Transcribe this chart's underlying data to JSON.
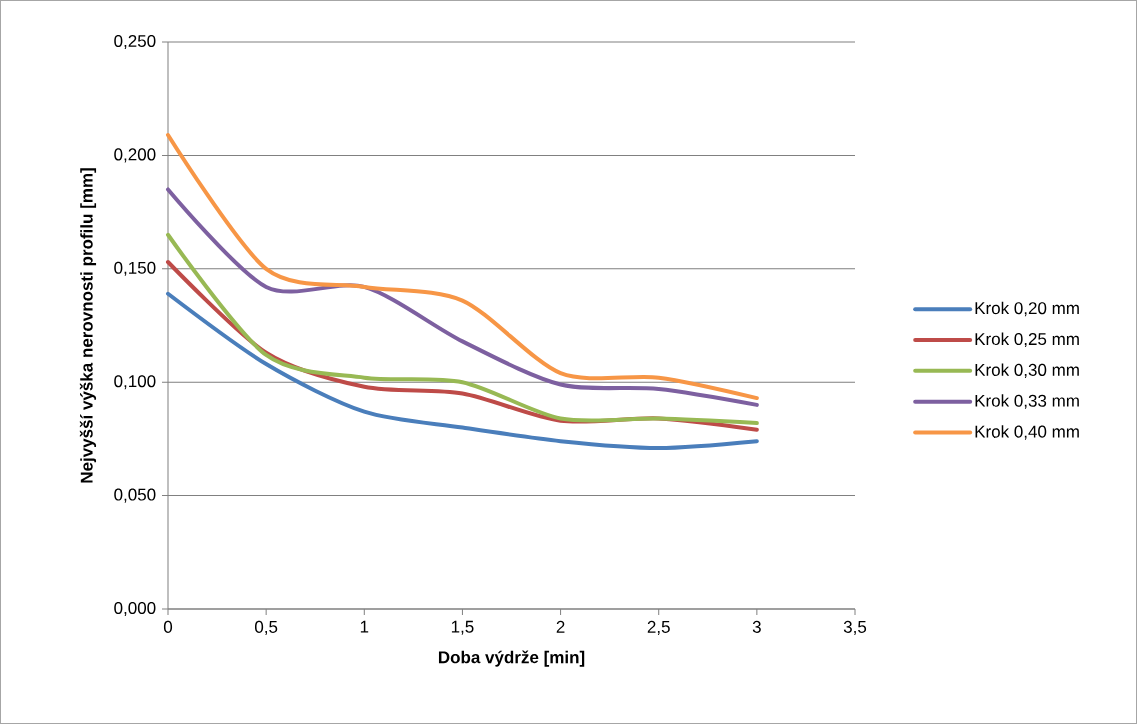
{
  "chart_data": {
    "type": "line",
    "xlabel": "Doba výdrže [min]",
    "ylabel": "Nejvyšší výška nerovnosti profilu  [mm]",
    "x": [
      0,
      0.5,
      1,
      1.5,
      2,
      2.5,
      3
    ],
    "series": [
      {
        "name": "Krok 0,20 mm",
        "color": "#4a7ebb",
        "values": [
          0.139,
          0.108,
          0.087,
          0.08,
          0.074,
          0.071,
          0.074
        ]
      },
      {
        "name": "Krok 0,25 mm",
        "color": "#be4b48",
        "values": [
          0.153,
          0.113,
          0.098,
          0.095,
          0.083,
          0.084,
          0.079
        ]
      },
      {
        "name": "Krok 0,30 mm",
        "color": "#98b954",
        "values": [
          0.165,
          0.112,
          0.102,
          0.1,
          0.084,
          0.084,
          0.082
        ]
      },
      {
        "name": "Krok 0,33 mm",
        "color": "#7d60a0",
        "values": [
          0.185,
          0.142,
          0.142,
          0.118,
          0.099,
          0.097,
          0.09
        ]
      },
      {
        "name": "Krok 0,40 mm",
        "color": "#f79646",
        "values": [
          0.209,
          0.15,
          0.142,
          0.136,
          0.104,
          0.102,
          0.093
        ]
      }
    ],
    "xlim": [
      0,
      3.5
    ],
    "ylim": [
      0,
      0.25
    ],
    "xticks": [
      0,
      {
        "value": 0.5,
        "label": "0,5"
      },
      1,
      {
        "value": 1.5,
        "label": "1,5"
      },
      2,
      {
        "value": 2.5,
        "label": "2,5"
      },
      3,
      {
        "value": 3.5,
        "label": "3,5"
      }
    ],
    "yticks": [
      {
        "value": 0,
        "label": "0,000"
      },
      {
        "value": 0.05,
        "label": "0,050"
      },
      {
        "value": 0.1,
        "label": "0,100"
      },
      {
        "value": 0.15,
        "label": "0,150"
      },
      {
        "value": 0.2,
        "label": "0,200"
      },
      {
        "value": 0.25,
        "label": "0,250"
      }
    ],
    "grid": "y",
    "legend": "right",
    "marker": "none",
    "line_style": "solid"
  }
}
